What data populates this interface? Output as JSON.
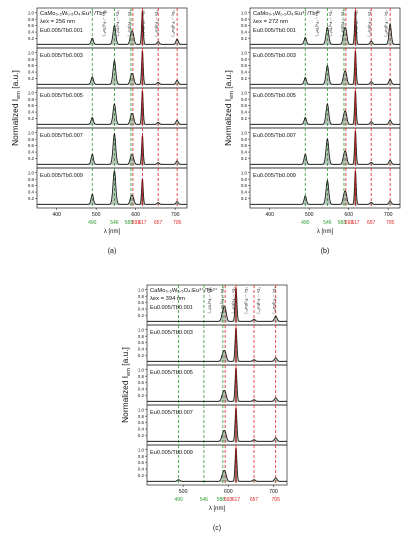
{
  "chart_data": [
    {
      "type": "line",
      "panel_label": "(a)",
      "header_line1": "CaMo₀.₅W₀.₅O₄:Eu³⁺/Tb³⁺",
      "header_line2": "λex = 256 nm",
      "xlabel": "λ [nm]",
      "ylabel": "Normalized I",
      "ylabel_sub": "em",
      "ylabel_unit": "[a.u.]",
      "xlim": [
        350,
        730
      ],
      "ylim": [
        0,
        1.0
      ],
      "xticks": [
        400,
        500,
        600,
        700
      ],
      "yticks": [
        "0.2",
        "0.4",
        "0.6",
        "0.8",
        "1.0"
      ],
      "transitions": [
        "⁵D₄→⁷F₆(Tb³⁺)",
        "⁵D₄→⁷F₅(Tb³⁺)",
        "⁵D₀→⁷F₁(Eu³⁺)",
        "⁵D₀→⁷F₂(Eu³⁺)",
        "⁵D₀→⁷F₃(Eu³⁺)",
        "⁵D₀→⁷F₄(Eu³⁺)"
      ],
      "tb_lines": [
        490,
        546,
        588
      ],
      "eu_lines": [
        593,
        617,
        657,
        705
      ],
      "samples": [
        "Eu0.005/Tb0.001",
        "Eu0.005/Tb0.003",
        "Eu0.005/Tb0.005",
        "Eu0.005/Tb0.007",
        "Eu0.005/Tb0.009"
      ],
      "series": [
        {
          "name": "Eu0.005/Tb0.001",
          "peaks": [
            {
              "x": 490,
              "y": 0.18
            },
            {
              "x": 546,
              "y": 0.55
            },
            {
              "x": 588,
              "y": 0.25
            },
            {
              "x": 593,
              "y": 0.3
            },
            {
              "x": 617,
              "y": 1.0
            },
            {
              "x": 657,
              "y": 0.08
            },
            {
              "x": 705,
              "y": 0.15
            }
          ]
        },
        {
          "name": "Eu0.005/Tb0.003",
          "peaks": [
            {
              "x": 490,
              "y": 0.22
            },
            {
              "x": 546,
              "y": 0.7
            },
            {
              "x": 588,
              "y": 0.2
            },
            {
              "x": 593,
              "y": 0.25
            },
            {
              "x": 617,
              "y": 1.0
            },
            {
              "x": 657,
              "y": 0.06
            },
            {
              "x": 705,
              "y": 0.12
            }
          ]
        },
        {
          "name": "Eu0.005/Tb0.005",
          "peaks": [
            {
              "x": 490,
              "y": 0.2
            },
            {
              "x": 546,
              "y": 0.6
            },
            {
              "x": 588,
              "y": 0.2
            },
            {
              "x": 593,
              "y": 0.25
            },
            {
              "x": 617,
              "y": 1.0
            },
            {
              "x": 657,
              "y": 0.06
            },
            {
              "x": 705,
              "y": 0.12
            }
          ]
        },
        {
          "name": "Eu0.005/Tb0.007",
          "peaks": [
            {
              "x": 490,
              "y": 0.3
            },
            {
              "x": 546,
              "y": 0.9
            },
            {
              "x": 588,
              "y": 0.2
            },
            {
              "x": 593,
              "y": 0.2
            },
            {
              "x": 617,
              "y": 0.85
            },
            {
              "x": 657,
              "y": 0.05
            },
            {
              "x": 705,
              "y": 0.1
            }
          ]
        },
        {
          "name": "Eu0.005/Tb0.009",
          "peaks": [
            {
              "x": 490,
              "y": 0.3
            },
            {
              "x": 546,
              "y": 1.0
            },
            {
              "x": 588,
              "y": 0.18
            },
            {
              "x": 593,
              "y": 0.2
            },
            {
              "x": 617,
              "y": 0.75
            },
            {
              "x": 657,
              "y": 0.05
            },
            {
              "x": 705,
              "y": 0.08
            }
          ]
        }
      ]
    },
    {
      "type": "line",
      "panel_label": "(b)",
      "header_line1": "CaMo₀.₅W₀.₅O₄:Eu³⁺/Tb³⁺",
      "header_line2": "λex = 272 nm",
      "xlabel": "λ [nm]",
      "ylabel": "Normalized I",
      "ylabel_sub": "em",
      "ylabel_unit": "[a.u.]",
      "xlim": [
        350,
        730
      ],
      "ylim": [
        0,
        1.0
      ],
      "xticks": [
        400,
        500,
        600,
        700
      ],
      "yticks": [
        "0.2",
        "0.4",
        "0.6",
        "0.8",
        "1.0"
      ],
      "transitions": [
        "⁵D₄→⁷F₆(Tb³⁺)",
        "⁵D₄→⁷F₅(Tb³⁺)",
        "⁵D₀→⁷F₁(Eu³⁺)",
        "⁵D₀→⁷F₂(Eu³⁺)",
        "⁵D₀→⁷F₃(Eu³⁺)",
        "⁵D₀→⁷F₄(Eu³⁺)"
      ],
      "tb_lines": [
        490,
        546,
        588
      ],
      "eu_lines": [
        593,
        617,
        657,
        705
      ],
      "samples": [
        "Eu0.005/Tb0.001",
        "Eu0.005/Tb0.003",
        "Eu0.005/Tb0.005",
        "Eu0.005/Tb0.007",
        "Eu0.005/Tb0.009"
      ],
      "series": [
        {
          "name": "Eu0.005/Tb0.001",
          "peaks": [
            {
              "x": 490,
              "y": 0.2
            },
            {
              "x": 546,
              "y": 0.5
            },
            {
              "x": 588,
              "y": 0.3
            },
            {
              "x": 593,
              "y": 0.4
            },
            {
              "x": 617,
              "y": 1.0
            },
            {
              "x": 657,
              "y": 0.1
            },
            {
              "x": 705,
              "y": 0.6
            }
          ]
        },
        {
          "name": "Eu0.005/Tb0.003",
          "peaks": [
            {
              "x": 490,
              "y": 0.2
            },
            {
              "x": 546,
              "y": 0.55
            },
            {
              "x": 588,
              "y": 0.25
            },
            {
              "x": 593,
              "y": 0.3
            },
            {
              "x": 617,
              "y": 1.0
            },
            {
              "x": 657,
              "y": 0.08
            },
            {
              "x": 705,
              "y": 0.15
            }
          ]
        },
        {
          "name": "Eu0.005/Tb0.005",
          "peaks": [
            {
              "x": 490,
              "y": 0.2
            },
            {
              "x": 546,
              "y": 0.6
            },
            {
              "x": 588,
              "y": 0.25
            },
            {
              "x": 593,
              "y": 0.3
            },
            {
              "x": 617,
              "y": 1.0
            },
            {
              "x": 657,
              "y": 0.08
            },
            {
              "x": 705,
              "y": 0.12
            }
          ]
        },
        {
          "name": "Eu0.005/Tb0.007",
          "peaks": [
            {
              "x": 490,
              "y": 0.3
            },
            {
              "x": 546,
              "y": 0.75
            },
            {
              "x": 588,
              "y": 0.25
            },
            {
              "x": 593,
              "y": 0.3
            },
            {
              "x": 617,
              "y": 1.0
            },
            {
              "x": 657,
              "y": 0.06
            },
            {
              "x": 705,
              "y": 0.12
            }
          ]
        },
        {
          "name": "Eu0.005/Tb0.009",
          "peaks": [
            {
              "x": 490,
              "y": 0.25
            },
            {
              "x": 546,
              "y": 0.7
            },
            {
              "x": 588,
              "y": 0.25
            },
            {
              "x": 593,
              "y": 0.3
            },
            {
              "x": 617,
              "y": 1.0
            },
            {
              "x": 657,
              "y": 0.06
            },
            {
              "x": 705,
              "y": 0.1
            }
          ]
        }
      ]
    },
    {
      "type": "line",
      "panel_label": "(c)",
      "header_line1": "CaMo₀.₅W₀.₅O₄:Eu³⁺/Tb³⁺",
      "header_line2": "λex = 394 nm",
      "xlabel": "λ [nm]",
      "ylabel": "Normalized I",
      "ylabel_sub": "em",
      "ylabel_unit": "[a.u.]",
      "xlim": [
        420,
        730
      ],
      "ylim": [
        0,
        1.0
      ],
      "xticks": [
        500,
        600,
        700
      ],
      "yticks": [
        "0.2",
        "0.4",
        "0.6",
        "0.8",
        "1.0"
      ],
      "transitions": [
        "⁵D₄→⁷F₆(Tb³⁺)",
        "⁵D₄→⁷F₅(Tb³⁺)",
        "⁵D₀→⁷F₁(Eu³⁺)",
        "⁵D₀→⁷F₂(Eu³⁺)",
        "⁵D₀→⁷F₃(Eu³⁺)",
        "⁵D₀→⁷F₄(Eu³⁺)"
      ],
      "tb_lines": [
        490,
        546,
        588
      ],
      "eu_lines": [
        593,
        617,
        657,
        705
      ],
      "samples": [
        "Eu0.005/Tb0.001",
        "Eu0.005/Tb0.003",
        "Eu0.005/Tb0.005",
        "Eu0.005/Tb0.007",
        "Eu0.005/Tb0.009"
      ],
      "series": [
        {
          "name": "Eu0.005/Tb0.001",
          "peaks": [
            {
              "x": 588,
              "y": 0.25
            },
            {
              "x": 593,
              "y": 0.35
            },
            {
              "x": 617,
              "y": 1.0
            },
            {
              "x": 657,
              "y": 0.06
            },
            {
              "x": 705,
              "y": 0.15
            }
          ]
        },
        {
          "name": "Eu0.005/Tb0.003",
          "peaks": [
            {
              "x": 588,
              "y": 0.2
            },
            {
              "x": 593,
              "y": 0.25
            },
            {
              "x": 617,
              "y": 1.0
            },
            {
              "x": 657,
              "y": 0.05
            },
            {
              "x": 705,
              "y": 0.1
            }
          ]
        },
        {
          "name": "Eu0.005/Tb0.005",
          "peaks": [
            {
              "x": 588,
              "y": 0.2
            },
            {
              "x": 593,
              "y": 0.25
            },
            {
              "x": 617,
              "y": 1.0
            },
            {
              "x": 657,
              "y": 0.05
            },
            {
              "x": 705,
              "y": 0.1
            }
          ]
        },
        {
          "name": "Eu0.005/Tb0.007",
          "peaks": [
            {
              "x": 588,
              "y": 0.2
            },
            {
              "x": 593,
              "y": 0.25
            },
            {
              "x": 617,
              "y": 1.0
            },
            {
              "x": 657,
              "y": 0.05
            },
            {
              "x": 705,
              "y": 0.1
            }
          ]
        },
        {
          "name": "Eu0.005/Tb0.009",
          "peaks": [
            {
              "x": 490,
              "y": 0.05
            },
            {
              "x": 588,
              "y": 0.2
            },
            {
              "x": 593,
              "y": 0.25
            },
            {
              "x": 617,
              "y": 1.0
            },
            {
              "x": 657,
              "y": 0.05
            },
            {
              "x": 705,
              "y": 0.1
            }
          ]
        }
      ]
    }
  ],
  "colors": {
    "tb_line": "#2e9a2e",
    "eu_line": "#dd2020",
    "curve": "#111111",
    "curve_fill": "#2f5a34",
    "eu_fill": "#a81818",
    "frame": "#222222"
  }
}
